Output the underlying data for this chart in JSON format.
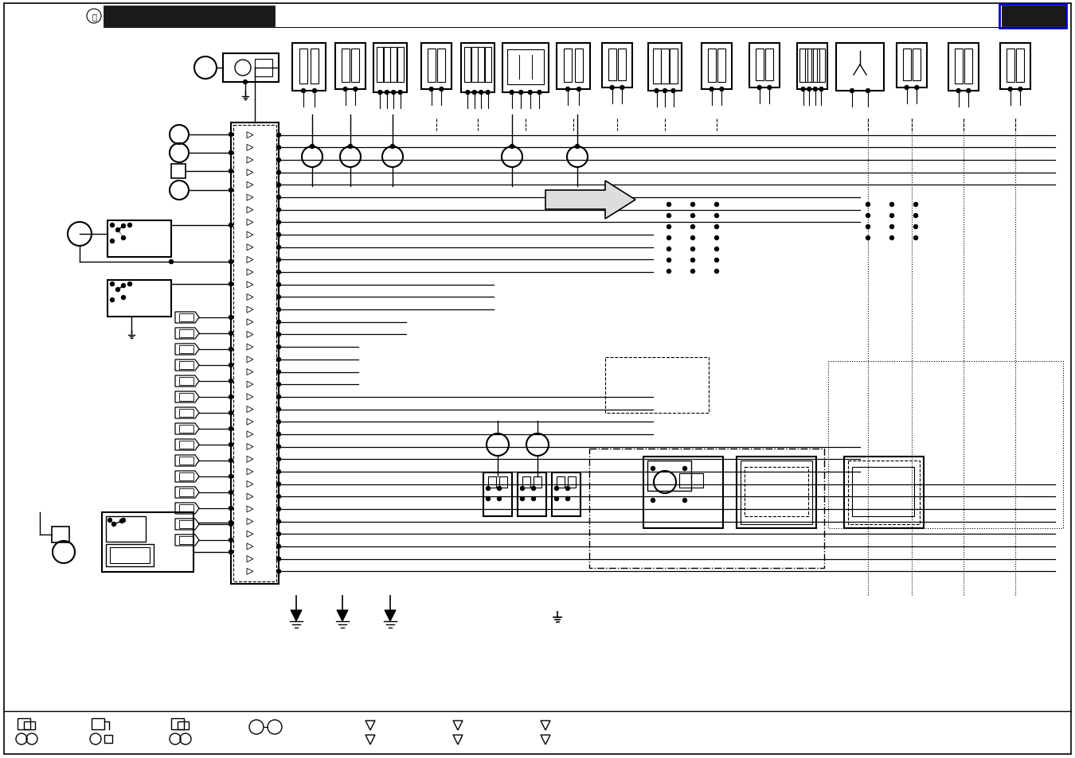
{
  "bg_color": "#ffffff",
  "header_bar_color": "#1a1a1a",
  "header_bar_right_border": "#0000cc",
  "line_color": "#000000",
  "gray_line": "#888888"
}
